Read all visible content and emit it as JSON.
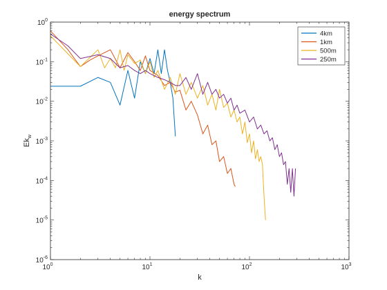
{
  "chart_data": {
    "type": "line",
    "title": "energy spectrum",
    "xlabel": "k",
    "ylabel": "Ek",
    "ylabel_subscript": "w",
    "xscale": "log",
    "yscale": "log",
    "xlim": [
      1,
      1000
    ],
    "ylim": [
      1e-06,
      1
    ],
    "xticks": [
      {
        "value": 1,
        "base": "10",
        "exp": "0"
      },
      {
        "value": 10,
        "base": "10",
        "exp": "1"
      },
      {
        "value": 100,
        "base": "10",
        "exp": "2"
      },
      {
        "value": 1000,
        "base": "10",
        "exp": "3"
      }
    ],
    "yticks": [
      {
        "value": 1e-06,
        "base": "10",
        "exp": "-6"
      },
      {
        "value": 1e-05,
        "base": "10",
        "exp": "-5"
      },
      {
        "value": 0.0001,
        "base": "10",
        "exp": "-4"
      },
      {
        "value": 0.001,
        "base": "10",
        "exp": "-3"
      },
      {
        "value": 0.01,
        "base": "10",
        "exp": "-2"
      },
      {
        "value": 0.1,
        "base": "10",
        "exp": "-1"
      },
      {
        "value": 1,
        "base": "10",
        "exp": "0"
      }
    ],
    "grid": false,
    "legend": "top-right",
    "series": [
      {
        "name": "4km",
        "color": "#0072BD",
        "x": [
          1,
          2,
          3,
          4,
          5,
          6,
          7,
          8,
          9,
          10,
          11,
          12,
          13,
          14,
          15,
          16,
          17,
          18
        ],
        "y": [
          0.024,
          0.024,
          0.04,
          0.03,
          0.008,
          0.06,
          0.012,
          0.1,
          0.05,
          0.12,
          0.05,
          0.2,
          0.05,
          0.2,
          0.06,
          0.03,
          0.012,
          0.0013
        ]
      },
      {
        "name": "1km",
        "color": "#D95319",
        "x": [
          1,
          1.5,
          2,
          2.5,
          3,
          4,
          5,
          6,
          7,
          8,
          9,
          10,
          12,
          14,
          16,
          18,
          20,
          23,
          26,
          30,
          34,
          38,
          42,
          46,
          50,
          55,
          60,
          65,
          70,
          72
        ],
        "y": [
          0.6,
          0.2,
          0.075,
          0.11,
          0.14,
          0.2,
          0.07,
          0.17,
          0.1,
          0.06,
          0.14,
          0.06,
          0.045,
          0.025,
          0.03,
          0.017,
          0.019,
          0.006,
          0.01,
          0.0045,
          0.0015,
          0.0025,
          0.0008,
          0.001,
          0.0003,
          0.0004,
          0.00015,
          0.0002,
          8e-05,
          7e-05
        ]
      },
      {
        "name": "500m",
        "color": "#EDB120",
        "x": [
          1,
          2,
          3,
          3.5,
          4,
          4.5,
          5,
          5.5,
          6,
          7,
          8,
          9,
          10,
          11,
          12,
          14,
          16,
          18,
          20,
          23,
          26,
          30,
          34,
          38,
          42,
          46,
          50,
          55,
          60,
          65,
          70,
          75,
          80,
          85,
          90,
          95,
          100,
          105,
          110,
          115,
          120,
          125,
          130,
          135,
          140,
          145
        ],
        "y": [
          0.45,
          0.075,
          0.2,
          0.07,
          0.12,
          0.07,
          0.2,
          0.06,
          0.15,
          0.09,
          0.11,
          0.05,
          0.1,
          0.04,
          0.06,
          0.02,
          0.04,
          0.015,
          0.05,
          0.015,
          0.03,
          0.012,
          0.025,
          0.008,
          0.015,
          0.006,
          0.02,
          0.007,
          0.009,
          0.004,
          0.006,
          0.003,
          0.004,
          0.0015,
          0.003,
          0.0009,
          0.0015,
          0.0005,
          0.001,
          0.00035,
          0.0006,
          0.0003,
          0.0004,
          0.00025,
          4e-05,
          1e-05
        ]
      },
      {
        "name": "250m",
        "color": "#7E2F8E",
        "x": [
          1,
          1.5,
          2,
          3,
          4,
          5,
          6,
          7,
          8,
          9,
          10,
          12,
          14,
          16,
          18,
          20,
          23,
          26,
          30,
          34,
          38,
          42,
          46,
          50,
          55,
          60,
          65,
          70,
          75,
          80,
          90,
          100,
          110,
          120,
          130,
          140,
          150,
          160,
          170,
          180,
          190,
          200,
          210,
          220,
          230,
          240,
          250,
          260,
          270,
          280,
          290
        ],
        "y": [
          0.5,
          0.25,
          0.12,
          0.15,
          0.12,
          0.07,
          0.08,
          0.06,
          0.05,
          0.06,
          0.05,
          0.04,
          0.035,
          0.03,
          0.025,
          0.025,
          0.04,
          0.02,
          0.05,
          0.015,
          0.03,
          0.015,
          0.02,
          0.012,
          0.015,
          0.009,
          0.012,
          0.006,
          0.008,
          0.005,
          0.006,
          0.003,
          0.004,
          0.002,
          0.0025,
          0.0015,
          0.0018,
          0.001,
          0.0012,
          0.0006,
          0.0008,
          0.0004,
          0.0005,
          0.00025,
          0.0003,
          8e-05,
          0.0002,
          5e-05,
          0.0002,
          4e-05,
          0.0002
        ]
      }
    ]
  }
}
